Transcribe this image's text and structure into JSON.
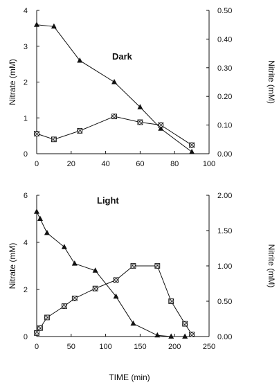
{
  "chart_data": [
    {
      "type": "line",
      "title": "Dark",
      "xlabel": "",
      "ylabel_left": "Nitrate (mM)",
      "ylabel_right": "Nitrite (mM)",
      "xlim": [
        0,
        100
      ],
      "ylim_left": [
        0,
        4
      ],
      "ylim_right": [
        0,
        0.5
      ],
      "x_ticks": [
        "0",
        "20",
        "40",
        "60",
        "80",
        "100"
      ],
      "y_ticks_left": [
        "0",
        "1",
        "2",
        "3",
        "4"
      ],
      "y_ticks_right": [
        "0.00",
        "0.10",
        "0.20",
        "0.30",
        "0.40",
        "0.50"
      ],
      "grid": false,
      "series": [
        {
          "axis": "left",
          "marker": "triangle",
          "x": [
            0,
            10,
            25,
            45,
            60,
            72,
            90
          ],
          "y": [
            3.6,
            3.55,
            2.6,
            2.0,
            1.3,
            0.7,
            0.05
          ]
        },
        {
          "axis": "right",
          "marker": "hatched-square",
          "x": [
            0,
            10,
            25,
            45,
            60,
            72,
            90
          ],
          "y": [
            0.07,
            0.05,
            0.08,
            0.13,
            0.11,
            0.1,
            0.03
          ]
        }
      ]
    },
    {
      "type": "line",
      "title": "Light",
      "xlabel": "TIME (min)",
      "ylabel_left": "Nitrate (mM)",
      "ylabel_right": "Nitrite (mM)",
      "xlim": [
        0,
        250
      ],
      "ylim_left": [
        0,
        6
      ],
      "ylim_right": [
        0,
        2.0
      ],
      "x_ticks": [
        "0",
        "50",
        "100",
        "150",
        "200",
        "250"
      ],
      "y_ticks_left": [
        "0",
        "2",
        "4",
        "6"
      ],
      "y_ticks_right": [
        "0.00",
        "0.50",
        "1.00",
        "1.50",
        "2.00"
      ],
      "grid": false,
      "series": [
        {
          "axis": "left",
          "marker": "triangle",
          "x": [
            0,
            5,
            15,
            40,
            55,
            85,
            115,
            140,
            175,
            195,
            215
          ],
          "y": [
            5.3,
            5.0,
            4.4,
            3.8,
            3.1,
            2.8,
            1.7,
            0.55,
            0.05,
            0.0,
            0.0
          ]
        },
        {
          "axis": "right",
          "marker": "hatched-square",
          "x": [
            0,
            5,
            15,
            40,
            55,
            85,
            115,
            140,
            175,
            195,
            215,
            225
          ],
          "y": [
            0.05,
            0.12,
            0.27,
            0.43,
            0.54,
            0.68,
            0.8,
            1.0,
            1.0,
            0.5,
            0.18,
            0.03
          ]
        }
      ]
    }
  ]
}
